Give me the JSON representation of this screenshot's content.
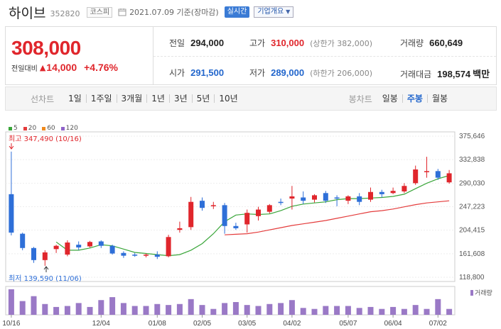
{
  "header": {
    "name": "하이브",
    "code": "352820",
    "market": "코스피",
    "date": "2021.07.09 기준(장마감)",
    "realtime_label": "실시간",
    "company_label": "기업개요"
  },
  "quote": {
    "price": "308,000",
    "change_label": "전일대비",
    "change": "14,000",
    "change_pct": "+4.76%",
    "prev_close_label": "전일",
    "prev_close": "294,000",
    "high_label": "고가",
    "high": "310,000",
    "upper_limit": "(상한가 382,000)",
    "volume_label": "거래량",
    "volume": "660,649",
    "open_label": "시가",
    "open": "291,500",
    "low_label": "저가",
    "low": "289,000",
    "lower_limit": "(하한가 206,000)",
    "amount_label": "거래대금",
    "amount": "198,574",
    "amount_unit": "백만"
  },
  "period_bar": {
    "line_label": "선차트",
    "line_items": [
      "1일",
      "1주일",
      "3개월",
      "1년",
      "3년",
      "5년",
      "10년"
    ],
    "candle_label": "봉차트",
    "candle_items": [
      "일봉",
      "주봉",
      "월봉"
    ],
    "selected_candle": "주봉"
  },
  "colors": {
    "up": "#e0262c",
    "down": "#2e6fd8",
    "ma5": "#3aa63a",
    "ma20": "#e43c3c",
    "ma60": "#f08a1c",
    "ma120": "#8f63c9",
    "volume": "#9a79c6"
  },
  "chart_data": {
    "type": "candlestick",
    "title": "하이브 주봉",
    "legend": [
      "5",
      "20",
      "60",
      "120"
    ],
    "ylim": [
      118800,
      375646
    ],
    "y_ticks": [
      "375,646",
      "332,838",
      "290,030",
      "247,223",
      "204,415",
      "161,608",
      "118,800"
    ],
    "y_tick_values": [
      375646,
      332838,
      290030,
      247223,
      204415,
      161608,
      118800
    ],
    "x_labels": [
      "10/16",
      "12/04",
      "01/08",
      "02/05",
      "03/05",
      "04/02",
      "05/07",
      "06/04",
      "07/02"
    ],
    "x_label_index": [
      0,
      8,
      13,
      17,
      21,
      25,
      30,
      34,
      38
    ],
    "max_label": "최고 347,490 (10/16)",
    "min_label": "최저 139,590 (11/06)",
    "volume_label": "거래량",
    "candles": [
      {
        "o": 270000,
        "h": 347490,
        "l": 195000,
        "c": 200000
      },
      {
        "o": 198000,
        "h": 200000,
        "l": 168000,
        "c": 172000
      },
      {
        "o": 172000,
        "h": 174000,
        "l": 145000,
        "c": 150000
      },
      {
        "o": 150000,
        "h": 168000,
        "l": 139590,
        "c": 164000
      },
      {
        "o": 170000,
        "h": 178000,
        "l": 163000,
        "c": 176000
      },
      {
        "o": 160000,
        "h": 186000,
        "l": 157000,
        "c": 182000
      },
      {
        "o": 178000,
        "h": 184000,
        "l": 168000,
        "c": 173000
      },
      {
        "o": 175000,
        "h": 185000,
        "l": 173000,
        "c": 183000
      },
      {
        "o": 184000,
        "h": 186000,
        "l": 172000,
        "c": 176000
      },
      {
        "o": 176000,
        "h": 178000,
        "l": 160000,
        "c": 162000
      },
      {
        "o": 163000,
        "h": 166000,
        "l": 154000,
        "c": 158000
      },
      {
        "o": 160000,
        "h": 163000,
        "l": 156000,
        "c": 158000
      },
      {
        "o": 158000,
        "h": 162000,
        "l": 155000,
        "c": 160000
      },
      {
        "o": 160000,
        "h": 166000,
        "l": 152000,
        "c": 156000
      },
      {
        "o": 157000,
        "h": 196000,
        "l": 155000,
        "c": 192000
      },
      {
        "o": 205000,
        "h": 220000,
        "l": 200000,
        "c": 208000
      },
      {
        "o": 210000,
        "h": 265000,
        "l": 205000,
        "c": 256000
      },
      {
        "o": 258000,
        "h": 264000,
        "l": 240000,
        "c": 245000
      },
      {
        "o": 248000,
        "h": 256000,
        "l": 243000,
        "c": 250000
      },
      {
        "o": 250000,
        "h": 254000,
        "l": 198000,
        "c": 212000
      },
      {
        "o": 212000,
        "h": 218000,
        "l": 205000,
        "c": 208000
      },
      {
        "o": 215000,
        "h": 242000,
        "l": 200000,
        "c": 236000
      },
      {
        "o": 230000,
        "h": 247000,
        "l": 222000,
        "c": 242000
      },
      {
        "o": 238000,
        "h": 252000,
        "l": 235000,
        "c": 250000
      },
      {
        "o": 256000,
        "h": 262000,
        "l": 250000,
        "c": 254000
      },
      {
        "o": 262000,
        "h": 285000,
        "l": 242000,
        "c": 266000
      },
      {
        "o": 264000,
        "h": 275000,
        "l": 252000,
        "c": 258000
      },
      {
        "o": 260000,
        "h": 270000,
        "l": 255000,
        "c": 268000
      },
      {
        "o": 272000,
        "h": 276000,
        "l": 254000,
        "c": 258000
      },
      {
        "o": 264000,
        "h": 268000,
        "l": 248000,
        "c": 262000
      },
      {
        "o": 258000,
        "h": 268000,
        "l": 252000,
        "c": 266000
      },
      {
        "o": 266000,
        "h": 272000,
        "l": 250000,
        "c": 256000
      },
      {
        "o": 260000,
        "h": 282000,
        "l": 256000,
        "c": 274000
      },
      {
        "o": 274000,
        "h": 278000,
        "l": 264000,
        "c": 270000
      },
      {
        "o": 272000,
        "h": 282000,
        "l": 270000,
        "c": 276000
      },
      {
        "o": 275000,
        "h": 290000,
        "l": 272000,
        "c": 285000
      },
      {
        "o": 290000,
        "h": 322000,
        "l": 287000,
        "c": 315000
      },
      {
        "o": 310000,
        "h": 338000,
        "l": 300000,
        "c": 312000
      },
      {
        "o": 312000,
        "h": 316000,
        "l": 296000,
        "c": 300000
      },
      {
        "o": 291500,
        "h": 314000,
        "l": 289000,
        "c": 308000
      }
    ],
    "ma5": [
      null,
      null,
      null,
      null,
      183000,
      168000,
      168000,
      172000,
      178000,
      176000,
      170000,
      164000,
      162000,
      160000,
      158000,
      160000,
      168000,
      180000,
      198000,
      220000,
      232000,
      234000,
      233000,
      234000,
      240000,
      248000,
      252000,
      254000,
      256000,
      260000,
      262000,
      262000,
      263000,
      264000,
      266000,
      270000,
      280000,
      290000,
      298000,
      304000
    ],
    "ma20": [
      null,
      null,
      null,
      null,
      null,
      null,
      null,
      null,
      null,
      null,
      null,
      null,
      null,
      null,
      null,
      null,
      null,
      null,
      null,
      196000,
      197000,
      198000,
      201000,
      205000,
      209000,
      213000,
      216000,
      219000,
      222000,
      226000,
      230000,
      234000,
      238000,
      240000,
      243000,
      247000,
      251000,
      254000,
      256000,
      258000
    ],
    "volume": [
      26,
      14,
      19,
      11,
      8,
      9,
      12,
      8,
      15,
      18,
      12,
      9,
      9,
      11,
      10,
      11,
      16,
      10,
      6,
      12,
      13,
      10,
      9,
      11,
      12,
      15,
      7,
      6,
      9,
      9,
      9,
      7,
      8,
      6,
      8,
      6,
      10,
      6,
      16,
      6
    ]
  }
}
